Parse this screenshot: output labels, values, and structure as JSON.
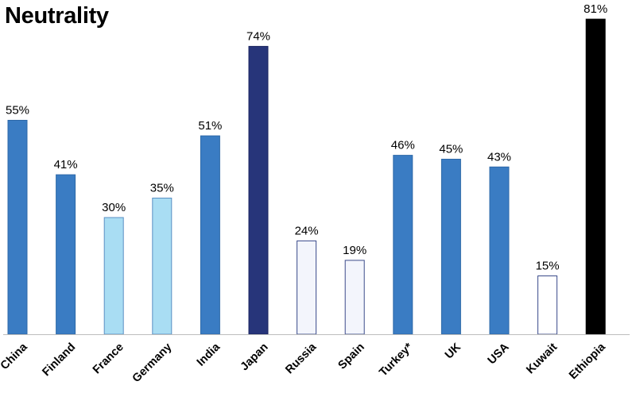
{
  "chart_data": {
    "type": "bar",
    "title": "Neutrality",
    "xlabel": "",
    "ylabel": "",
    "ylim": [
      0,
      84
    ],
    "grid": false,
    "unit": "%",
    "categories": [
      "China",
      "Finland",
      "France",
      "Germany",
      "India",
      "Japan",
      "Russia",
      "Spain",
      "Turkey*",
      "UK",
      "USA",
      "Kuwait",
      "Ethiopia"
    ],
    "values": [
      55,
      41,
      30,
      35,
      51,
      74,
      24,
      19,
      46,
      45,
      43,
      15,
      81
    ],
    "labels": [
      "55%",
      "41%",
      "30%",
      "35%",
      "51%",
      "74%",
      "24%",
      "19%",
      "46%",
      "45%",
      "43%",
      "15%",
      "81%"
    ],
    "colors": [
      "#3a7cc3",
      "#3a7cc3",
      "#a9ddf3",
      "#a9ddf3",
      "#3a7cc3",
      "#27357a",
      "#f3f5fc",
      "#f3f5fc",
      "#3a7cc3",
      "#3a7cc3",
      "#3a7cc3",
      "#ffffff",
      "#000000"
    ],
    "stroke_colors": [
      "#2e69a8",
      "#2e69a8",
      "#5a8fc4",
      "#5a8fc4",
      "#2e69a8",
      "#1b2560",
      "#3a4a8a",
      "#3a4a8a",
      "#2e69a8",
      "#2e69a8",
      "#2e69a8",
      "#3a4a8a",
      "#000000"
    ]
  }
}
